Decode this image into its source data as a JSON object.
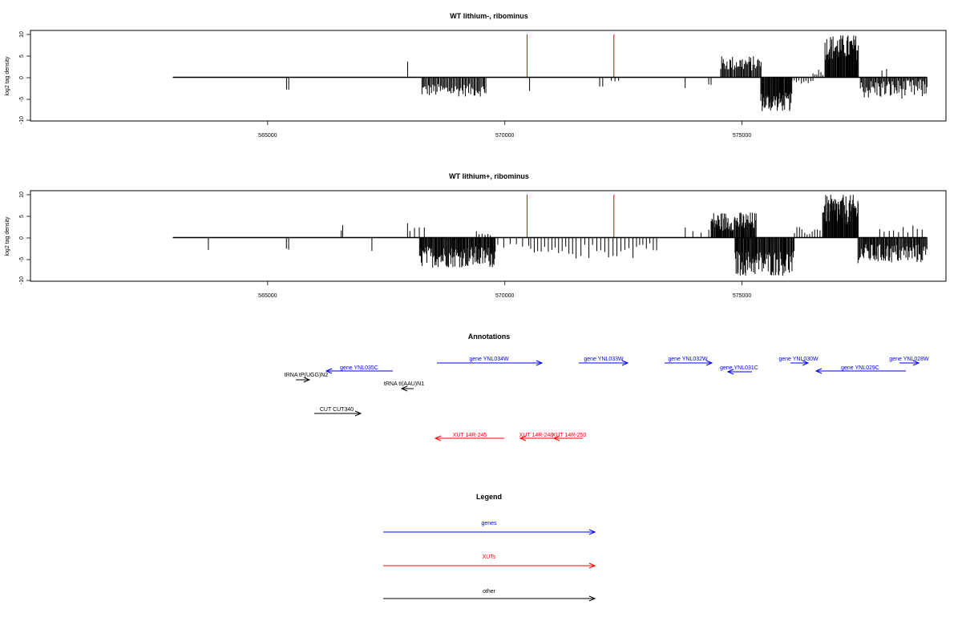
{
  "chart_data": [
    {
      "type": "bar",
      "title": "WT lithium-, ribominus",
      "ylabel": "log2 tag density",
      "xlabel": "",
      "xlim": [
        560000,
        579300
      ],
      "ylim": [
        -10,
        10
      ],
      "x_ticks": [
        565000,
        570000,
        575000
      ],
      "x_tick_labels": [
        "565000",
        "570000",
        "575000"
      ],
      "y_ticks": [
        -10,
        -5,
        0,
        5,
        10
      ],
      "y_tick_labels": [
        "-10",
        "-5",
        "0",
        "5",
        "10"
      ],
      "baseline": {
        "from": 563000,
        "to": 578900,
        "y": 0
      },
      "markers": [
        {
          "x": 570470,
          "color": "#dd0000"
        },
        {
          "x": 572300,
          "color": "#dd0000"
        }
      ],
      "series": [
        {
          "color": "#000000",
          "clusters": [
            {
              "from": 565400,
              "to": 565440,
              "count": 2,
              "min": -3.5,
              "max": -2.5
            },
            {
              "from": 567950,
              "to": 567950,
              "count": 1,
              "min": 3,
              "max": 4
            },
            {
              "from": 568250,
              "to": 569600,
              "count": 60,
              "min": -4.5,
              "max": -1.5
            },
            {
              "from": 570520,
              "to": 570540,
              "count": 1,
              "min": -3.5,
              "max": -3
            },
            {
              "from": 572000,
              "to": 572060,
              "count": 2,
              "min": -3.5,
              "max": -1.5
            },
            {
              "from": 572250,
              "to": 572400,
              "count": 3,
              "min": -1.5,
              "max": -0.5
            },
            {
              "from": 573800,
              "to": 573850,
              "count": 1,
              "min": -2.5,
              "max": -2.5
            },
            {
              "from": 574300,
              "to": 574350,
              "count": 2,
              "min": -2,
              "max": -1
            },
            {
              "from": 574550,
              "to": 575400,
              "count": 45,
              "min": 1.5,
              "max": 5
            },
            {
              "from": 575400,
              "to": 576050,
              "count": 55,
              "min": -8,
              "max": -3.5
            },
            {
              "from": 576050,
              "to": 576500,
              "count": 10,
              "min": -1.5,
              "max": -0.5
            },
            {
              "from": 576500,
              "to": 576700,
              "count": 6,
              "min": 0.5,
              "max": 2
            },
            {
              "from": 576750,
              "to": 577450,
              "count": 60,
              "min": 4,
              "max": 10
            },
            {
              "from": 577500,
              "to": 578900,
              "count": 70,
              "min": -5,
              "max": -0.5
            },
            {
              "from": 577950,
              "to": 578050,
              "count": 2,
              "min": 1.5,
              "max": 2.5
            }
          ]
        }
      ]
    },
    {
      "type": "bar",
      "title": "WT lithium+, ribominus",
      "ylabel": "log2 tag density",
      "xlabel": "",
      "xlim": [
        560000,
        579300
      ],
      "ylim": [
        -10,
        10
      ],
      "x_ticks": [
        565000,
        570000,
        575000
      ],
      "x_tick_labels": [
        "565000",
        "570000",
        "575000"
      ],
      "y_ticks": [
        -10,
        -5,
        0,
        5,
        10
      ],
      "y_tick_labels": [
        "-10",
        "-5",
        "0",
        "5",
        "10"
      ],
      "baseline": {
        "from": 563000,
        "to": 578900,
        "y": 0
      },
      "markers": [
        {
          "x": 570470,
          "color": "#dd0000"
        },
        {
          "x": 572300,
          "color": "#dd0000"
        }
      ],
      "series": [
        {
          "color": "#000000",
          "clusters": [
            {
              "from": 563750,
              "to": 563780,
              "count": 1,
              "min": -3,
              "max": -2.5
            },
            {
              "from": 565400,
              "to": 565440,
              "count": 2,
              "min": -3.5,
              "max": -2.5
            },
            {
              "from": 566550,
              "to": 566580,
              "count": 2,
              "min": 1.5,
              "max": 3
            },
            {
              "from": 567200,
              "to": 567230,
              "count": 1,
              "min": -3.5,
              "max": -3
            },
            {
              "from": 567950,
              "to": 567950,
              "count": 1,
              "min": 3,
              "max": 4
            },
            {
              "from": 568000,
              "to": 568300,
              "count": 4,
              "min": 1,
              "max": 2.5
            },
            {
              "from": 568200,
              "to": 569800,
              "count": 110,
              "min": -7,
              "max": -2
            },
            {
              "from": 569400,
              "to": 569700,
              "count": 6,
              "min": 0.5,
              "max": 2
            },
            {
              "from": 569850,
              "to": 570500,
              "count": 6,
              "min": -3,
              "max": -1.5
            },
            {
              "from": 570550,
              "to": 571500,
              "count": 14,
              "min": -5,
              "max": -2
            },
            {
              "from": 571600,
              "to": 572700,
              "count": 14,
              "min": -5,
              "max": -1.5
            },
            {
              "from": 572700,
              "to": 573200,
              "count": 8,
              "min": -3,
              "max": -1
            },
            {
              "from": 573800,
              "to": 574300,
              "count": 4,
              "min": 0.5,
              "max": 2.5
            },
            {
              "from": 574350,
              "to": 575300,
              "count": 70,
              "min": 1.5,
              "max": 6
            },
            {
              "from": 574850,
              "to": 576100,
              "count": 90,
              "min": -9,
              "max": -3
            },
            {
              "from": 576100,
              "to": 576700,
              "count": 12,
              "min": 0.5,
              "max": 2.5
            },
            {
              "from": 576700,
              "to": 577450,
              "count": 70,
              "min": 3,
              "max": 10
            },
            {
              "from": 577450,
              "to": 578900,
              "count": 90,
              "min": -6,
              "max": -1.5
            },
            {
              "from": 577900,
              "to": 578800,
              "count": 10,
              "min": 1,
              "max": 3
            }
          ]
        }
      ]
    }
  ],
  "annotations": {
    "title": "Annotations",
    "genes": [
      {
        "label": "gene YNL035C",
        "dir": "left"
      },
      {
        "label": "gene YNL034W",
        "dir": "right"
      },
      {
        "label": "gene YNL033W",
        "dir": "right"
      },
      {
        "label": "gene YNL032W",
        "dir": "right"
      },
      {
        "label": "gene YNL031C",
        "dir": "left"
      },
      {
        "label": "gene YNL030W",
        "dir": "right"
      },
      {
        "label": "gene YNL029C",
        "dir": "left"
      },
      {
        "label": "gene YNL028W",
        "dir": "right"
      }
    ],
    "xuts": [
      {
        "label": "XUT 14R-245",
        "dir": "left"
      },
      {
        "label": "XUT 14R-248",
        "dir": "left"
      },
      {
        "label": "XUT 14R-250",
        "dir": "left"
      }
    ],
    "other": [
      {
        "label": "tRNA tP(UGG)N2",
        "dir": "right"
      },
      {
        "label": "tRNA tI(AAU)N1",
        "dir": "left"
      },
      {
        "label": "CUT CUT340",
        "dir": "right"
      }
    ]
  },
  "legend": {
    "title": "Legend",
    "items": [
      {
        "label": "genes",
        "color": "#0000ff"
      },
      {
        "label": "XUTs",
        "color": "#ff0000"
      },
      {
        "label": "other",
        "color": "#000000"
      }
    ]
  },
  "colors": {
    "gene": "#0000ff",
    "xut": "#ff0000",
    "other": "#000000",
    "marker": "#dd0000"
  }
}
